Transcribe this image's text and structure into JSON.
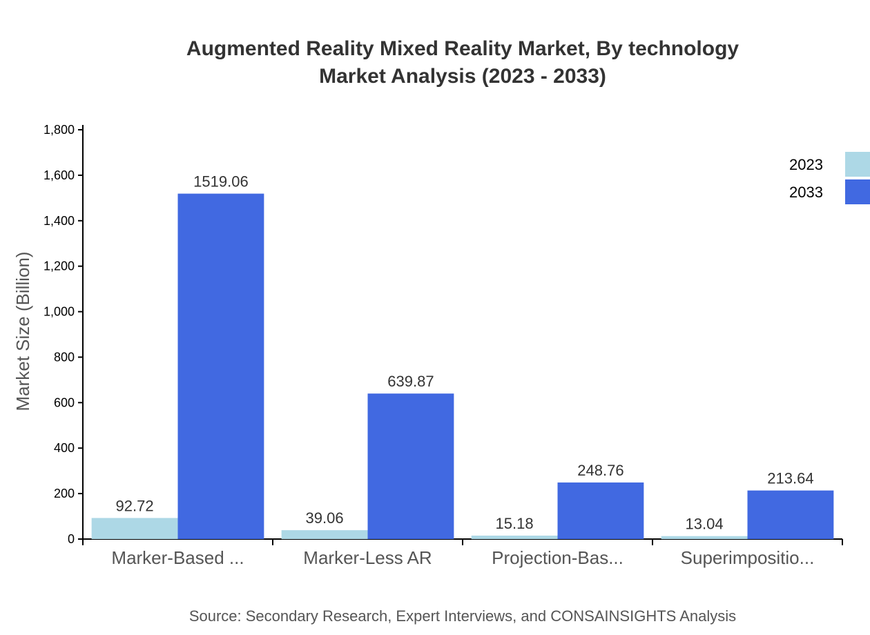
{
  "chart_data": {
    "type": "bar",
    "title": "Augmented Reality Mixed Reality Market, By technology",
    "subtitle": "Market Analysis (2023 - 2033)",
    "ylabel": "Market Size (Billion)",
    "xlabel": "",
    "ylim": [
      0,
      1800
    ],
    "yticks": [
      0,
      200,
      400,
      600,
      800,
      1000,
      1200,
      1400,
      1600,
      1800
    ],
    "ytick_labels": [
      "0",
      "200",
      "400",
      "600",
      "800",
      "1,000",
      "1,200",
      "1,400",
      "1,600",
      "1,800"
    ],
    "categories": [
      "Marker-Based ...",
      "Marker-Less AR",
      "Projection-Bas...",
      "Superimpositio..."
    ],
    "series": [
      {
        "name": "2023",
        "color": "#add8e6",
        "values": [
          92.72,
          39.06,
          15.18,
          13.04
        ],
        "labels": [
          "92.72",
          "39.06",
          "15.18",
          "13.04"
        ]
      },
      {
        "name": "2033",
        "color": "#4169e1",
        "values": [
          1519.06,
          639.87,
          248.76,
          213.64
        ],
        "labels": [
          "1519.06",
          "639.87",
          "248.76",
          "213.64"
        ]
      }
    ],
    "legend_position": "top-right",
    "grid": false,
    "source": "Source: Secondary Research, Expert Interviews, and CONSAINSIGHTS Analysis"
  }
}
